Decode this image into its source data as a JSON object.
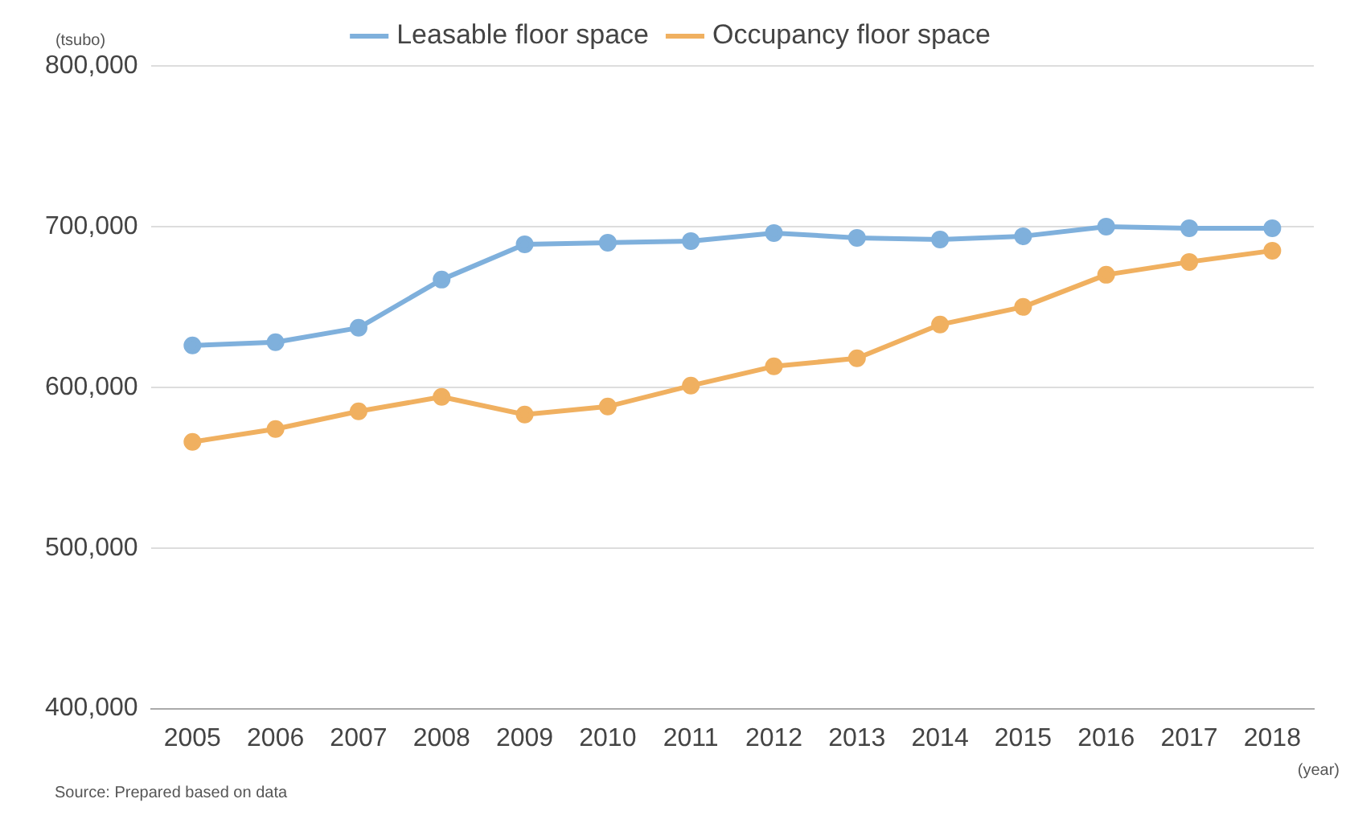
{
  "chart_data": {
    "type": "line",
    "ylabel": "(tsubo)",
    "xlabel": "(year)",
    "categories": [
      "2005",
      "2006",
      "2007",
      "2008",
      "2009",
      "2010",
      "2011",
      "2012",
      "2013",
      "2014",
      "2015",
      "2016",
      "2017",
      "2018"
    ],
    "series": [
      {
        "name": "Leasable floor space",
        "color": "#7fb0dc",
        "values": [
          626000,
          628000,
          637000,
          667000,
          689000,
          690000,
          691000,
          696000,
          693000,
          692000,
          694000,
          700000,
          699000,
          699000
        ]
      },
      {
        "name": "Occupancy floor space",
        "color": "#f0b060",
        "values": [
          566000,
          574000,
          585000,
          594000,
          583000,
          588000,
          601000,
          613000,
          618000,
          639000,
          650000,
          670000,
          678000,
          685000
        ]
      }
    ],
    "ylim": [
      400000,
      800000
    ],
    "yticks": [
      {
        "value": 400000,
        "label": "400,000"
      },
      {
        "value": 500000,
        "label": "500,000"
      },
      {
        "value": 600000,
        "label": "600,000"
      },
      {
        "value": 700000,
        "label": "700,000"
      },
      {
        "value": 800000,
        "label": "800,000"
      }
    ],
    "grid": "y",
    "legend": "top left",
    "marker": "circle",
    "line_style": "solid",
    "annotations": [
      "Source: Prepared based on data"
    ]
  }
}
